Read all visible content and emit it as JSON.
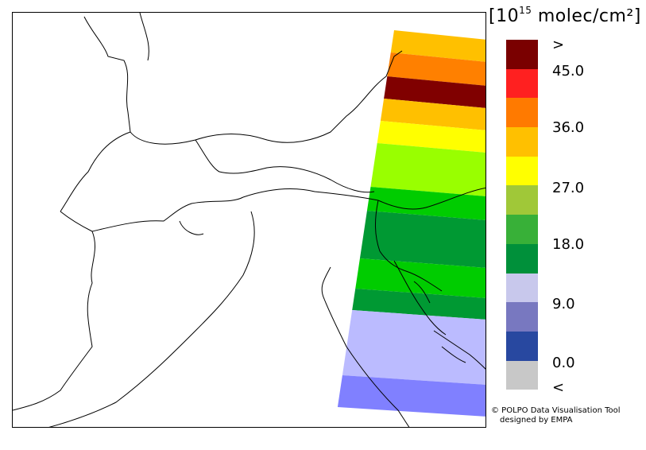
{
  "units": {
    "prefix": "[10",
    "exp": "15",
    "suffix": " molec/cm²]"
  },
  "legend": {
    "colors": [
      "#7a0000",
      "#ff2020",
      "#ff7a00",
      "#ffc000",
      "#ffff00",
      "#a0c838",
      "#38b038",
      "#00903a",
      "#c8c8ec",
      "#7878c0",
      "#2848a0",
      "#c8c8c8"
    ],
    "labels": [
      ">",
      "45.0",
      "36.0",
      "27.0",
      "18.0",
      "9.0",
      "0.0",
      "<"
    ]
  },
  "swath_bands": [
    {
      "color": "#ffc000"
    },
    {
      "color": "#ff8000"
    },
    {
      "color": "#800000"
    },
    {
      "color": "#ffc000"
    },
    {
      "color": "#ffff00"
    },
    {
      "color": "#99ff00"
    },
    {
      "color": "#00cc00"
    },
    {
      "color": "#009933"
    },
    {
      "color": "#00cc00"
    },
    {
      "color": "#009933"
    },
    {
      "color": "#bbbbff"
    },
    {
      "color": "#8080ff"
    }
  ],
  "credit": {
    "line1": "© POLPO Data Visualisation Tool",
    "line2": "designed by EMPA"
  }
}
